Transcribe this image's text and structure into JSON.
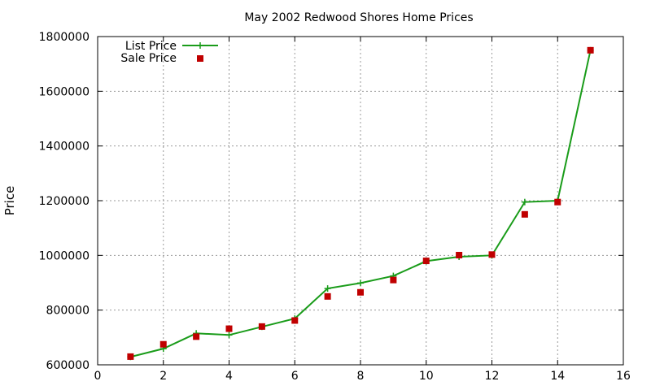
{
  "chart_data": {
    "type": "line",
    "title": "May 2002 Redwood Shores Home Prices",
    "xlabel": "",
    "ylabel": "Price",
    "xlim": [
      0,
      16
    ],
    "ylim": [
      600000,
      1800000
    ],
    "xticks": [
      0,
      2,
      4,
      6,
      8,
      10,
      12,
      14,
      16
    ],
    "yticks": [
      600000,
      800000,
      1000000,
      1200000,
      1400000,
      1600000,
      1800000
    ],
    "grid": true,
    "legend_position": "top-left",
    "series": [
      {
        "name": "List Price",
        "style": "line-with-plus-markers",
        "color": "#1a9c1a",
        "x": [
          1,
          2,
          3,
          4,
          5,
          6,
          7,
          8,
          9,
          10,
          11,
          12,
          13,
          14,
          15
        ],
        "y": [
          629000,
          659000,
          715000,
          709000,
          739000,
          769000,
          879000,
          899000,
          925000,
          979000,
          995000,
          1000000,
          1195000,
          1200000,
          1750000
        ]
      },
      {
        "name": "Sale Price",
        "style": "square-points",
        "color": "#c00000",
        "x": [
          1,
          2,
          3,
          4,
          5,
          6,
          7,
          8,
          9,
          10,
          11,
          12,
          13,
          14,
          15
        ],
        "y": [
          630000,
          675000,
          703000,
          732000,
          740000,
          762000,
          850000,
          865000,
          910000,
          980000,
          1001000,
          1003000,
          1150000,
          1195000,
          1750000
        ]
      }
    ]
  }
}
